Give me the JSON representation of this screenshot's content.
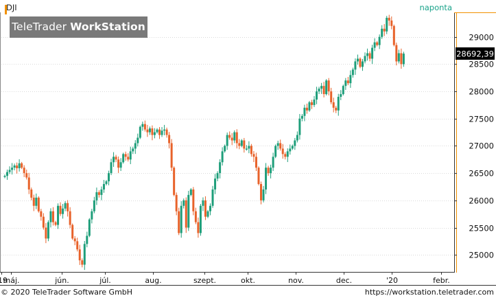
{
  "symbol": "DJI",
  "period": "naponta",
  "watermark": {
    "brand": "TeleTrader",
    "product": "WorkStation"
  },
  "last_price": "28692,39",
  "footer": {
    "copyright": "© 2020 TeleTrader Software GmbH",
    "url": "https://workstation.teletrader.com"
  },
  "colors": {
    "up": "#1e9e7a",
    "down": "#e8622a",
    "accent": "#f29100",
    "grid": "#d9d9d9",
    "axis": "#333333"
  },
  "chart_data": {
    "type": "candlestick",
    "title": "DJI",
    "ylim": [
      24700,
      29450
    ],
    "y_ticks": [
      25000,
      25500,
      26000,
      26500,
      27000,
      27500,
      28000,
      28500,
      29000
    ],
    "y_tick_labels": [
      "25000",
      "25500",
      "26000",
      "26500",
      "27000",
      "27500",
      "28000",
      "28500",
      "29000"
    ],
    "x_tick_labels": [
      {
        "label": "'19",
        "date": "2019-04-25"
      },
      {
        "label": "máj.",
        "date": "2019-05-01"
      },
      {
        "label": "jún.",
        "date": "2019-06-03"
      },
      {
        "label": "júl.",
        "date": "2019-07-01"
      },
      {
        "label": "aug.",
        "date": "2019-08-01"
      },
      {
        "label": "szept.",
        "date": "2019-09-03"
      },
      {
        "label": "okt.",
        "date": "2019-10-01"
      },
      {
        "label": "nov.",
        "date": "2019-11-01"
      },
      {
        "label": "dec.",
        "date": "2019-12-02"
      },
      {
        "label": "'20",
        "date": "2020-01-02"
      },
      {
        "label": "febr.",
        "date": "2020-02-03"
      }
    ],
    "grid": true,
    "last_value": 28692.39,
    "close": [
      26450,
      26520,
      26560,
      26600,
      26640,
      26590,
      26680,
      26600,
      26500,
      26420,
      26200,
      26050,
      25900,
      26050,
      25800,
      25700,
      25500,
      25300,
      25600,
      25800,
      25600,
      25550,
      25900,
      25750,
      25850,
      25950,
      25800,
      25550,
      25300,
      25250,
      25100,
      24900,
      24820,
      25200,
      25350,
      25650,
      25800,
      26000,
      26150,
      26100,
      26200,
      26300,
      26350,
      26500,
      26700,
      26800,
      26750,
      26600,
      26700,
      26850,
      26800,
      26750,
      26900,
      26950,
      27050,
      27150,
      27350,
      27400,
      27300,
      27250,
      27320,
      27200,
      27250,
      27300,
      27200,
      27280,
      27300,
      27200,
      27050,
      26600,
      26100,
      25800,
      25400,
      25900,
      26000,
      25500,
      26100,
      26200,
      25800,
      25600,
      25400,
      25900,
      26000,
      25700,
      25800,
      25900,
      26200,
      26400,
      26500,
      26700,
      26900,
      27000,
      27200,
      27150,
      27100,
      27250,
      27050,
      27000,
      27100,
      26950,
      26950,
      27000,
      26850,
      26800,
      26600,
      26300,
      26000,
      26200,
      26600,
      26500,
      26600,
      26800,
      27000,
      27050,
      26950,
      26850,
      26800,
      26900,
      26950,
      27000,
      27100,
      27200,
      27500,
      27550,
      27700,
      27650,
      27800,
      27750,
      27850,
      28000,
      28050,
      28100,
      27950,
      28200,
      28000,
      27800,
      27700,
      27650,
      27900,
      27950,
      28100,
      28200,
      28150,
      28300,
      28400,
      28550,
      28600,
      28450,
      28550,
      28650,
      28700,
      28600,
      28800,
      28900,
      28850,
      29000,
      29150,
      29100,
      29350,
      29300,
      29200,
      28850,
      28550,
      28700,
      28500,
      28692.39
    ]
  }
}
